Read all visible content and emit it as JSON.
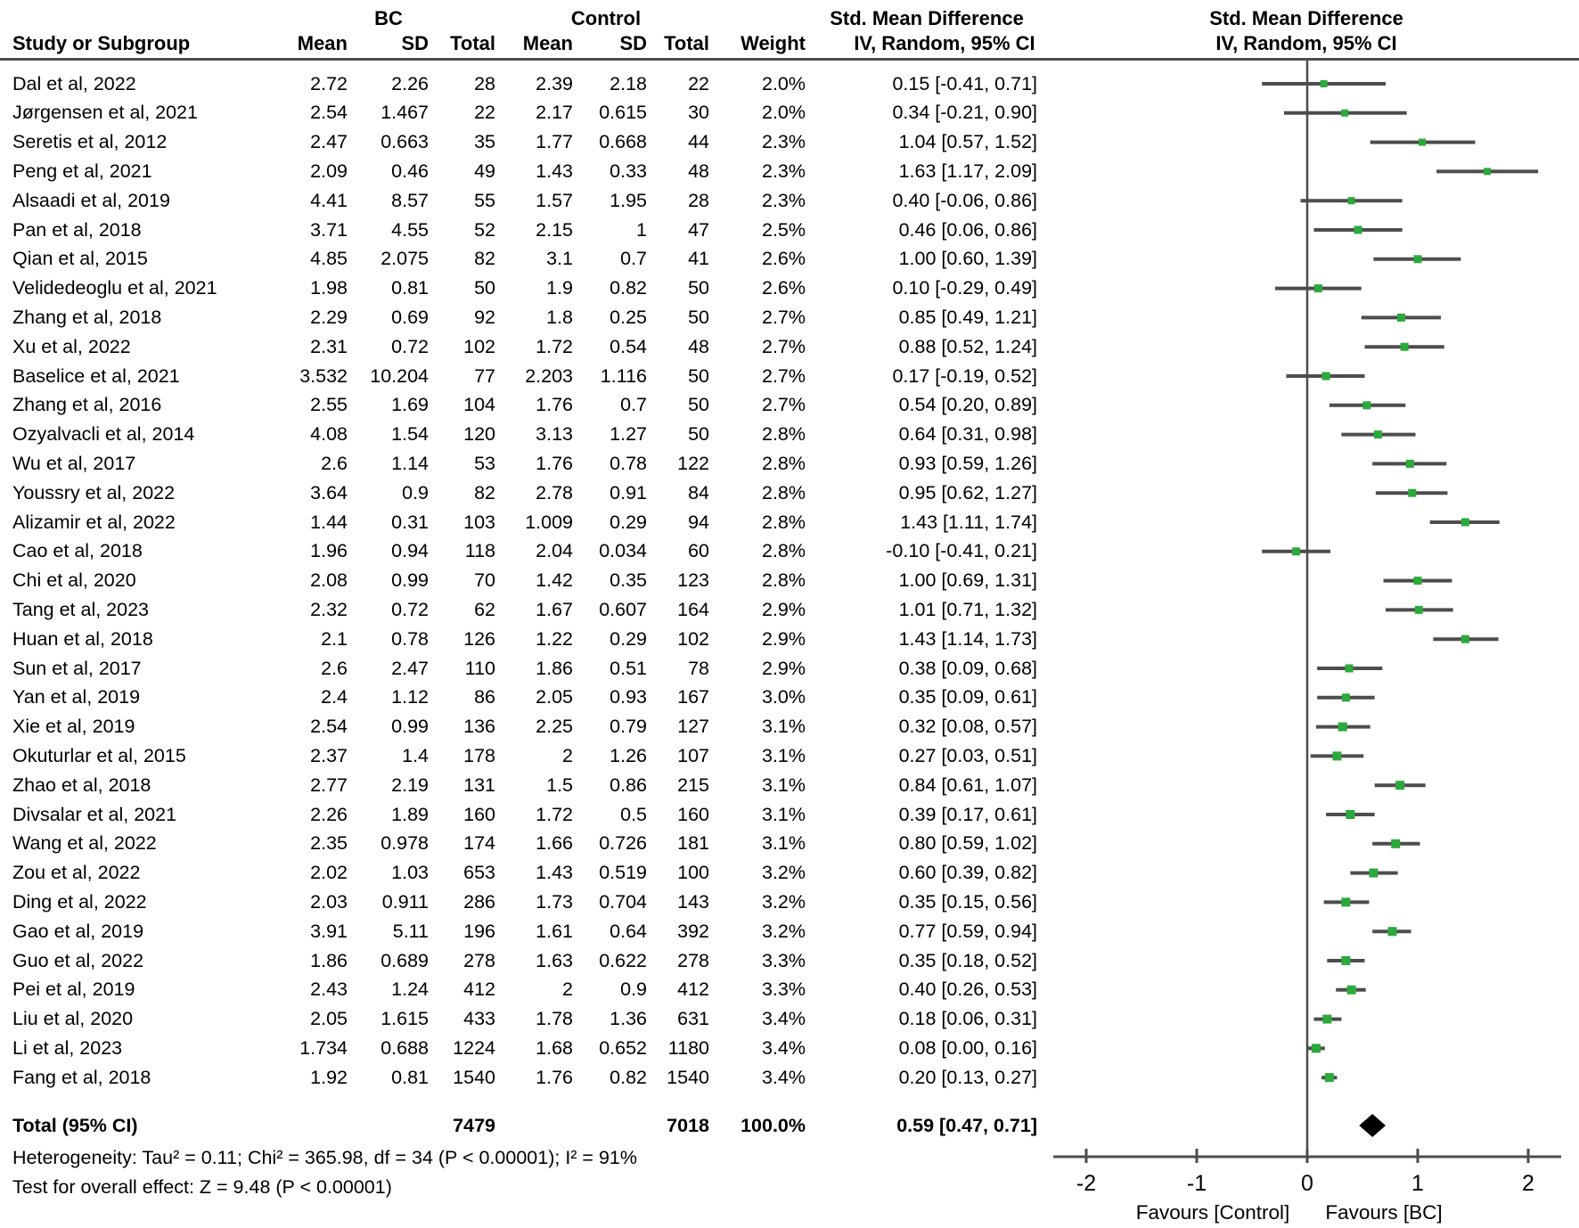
{
  "chart_data": {
    "type": "forest",
    "group_headers": {
      "bc": "BC",
      "control": "Control",
      "smd_left": "Std. Mean Difference",
      "smd_right": "Std. Mean Difference"
    },
    "column_headers": {
      "study": "Study or Subgroup",
      "bc_mean": "Mean",
      "bc_sd": "SD",
      "bc_total": "Total",
      "ctl_mean": "Mean",
      "ctl_sd": "SD",
      "ctl_total": "Total",
      "weight": "Weight",
      "ci_left": "IV, Random, 95% CI",
      "ci_right": "IV, Random, 95% CI"
    },
    "studies": [
      {
        "name": "Dal et al, 2022",
        "bc_mean": "2.72",
        "bc_sd": "2.26",
        "bc_total": "28",
        "ctl_mean": "2.39",
        "ctl_sd": "2.18",
        "ctl_total": "22",
        "weight": "2.0%",
        "ci_text": "0.15 [-0.41, 0.71]",
        "est": 0.15,
        "lo": -0.41,
        "hi": 0.71,
        "weight_pct": 2.0
      },
      {
        "name": "Jørgensen et al, 2021",
        "bc_mean": "2.54",
        "bc_sd": "1.467",
        "bc_total": "22",
        "ctl_mean": "2.17",
        "ctl_sd": "0.615",
        "ctl_total": "30",
        "weight": "2.0%",
        "ci_text": "0.34 [-0.21, 0.90]",
        "est": 0.34,
        "lo": -0.21,
        "hi": 0.9,
        "weight_pct": 2.0
      },
      {
        "name": "Seretis et al, 2012",
        "bc_mean": "2.47",
        "bc_sd": "0.663",
        "bc_total": "35",
        "ctl_mean": "1.77",
        "ctl_sd": "0.668",
        "ctl_total": "44",
        "weight": "2.3%",
        "ci_text": "1.04 [0.57, 1.52]",
        "est": 1.04,
        "lo": 0.57,
        "hi": 1.52,
        "weight_pct": 2.3
      },
      {
        "name": "Peng et al, 2021",
        "bc_mean": "2.09",
        "bc_sd": "0.46",
        "bc_total": "49",
        "ctl_mean": "1.43",
        "ctl_sd": "0.33",
        "ctl_total": "48",
        "weight": "2.3%",
        "ci_text": "1.63 [1.17, 2.09]",
        "est": 1.63,
        "lo": 1.17,
        "hi": 2.09,
        "weight_pct": 2.3
      },
      {
        "name": "Alsaadi et al, 2019",
        "bc_mean": "4.41",
        "bc_sd": "8.57",
        "bc_total": "55",
        "ctl_mean": "1.57",
        "ctl_sd": "1.95",
        "ctl_total": "28",
        "weight": "2.3%",
        "ci_text": "0.40 [-0.06, 0.86]",
        "est": 0.4,
        "lo": -0.06,
        "hi": 0.86,
        "weight_pct": 2.3
      },
      {
        "name": "Pan et al, 2018",
        "bc_mean": "3.71",
        "bc_sd": "4.55",
        "bc_total": "52",
        "ctl_mean": "2.15",
        "ctl_sd": "1",
        "ctl_total": "47",
        "weight": "2.5%",
        "ci_text": "0.46 [0.06, 0.86]",
        "est": 0.46,
        "lo": 0.06,
        "hi": 0.86,
        "weight_pct": 2.5
      },
      {
        "name": "Qian et al, 2015",
        "bc_mean": "4.85",
        "bc_sd": "2.075",
        "bc_total": "82",
        "ctl_mean": "3.1",
        "ctl_sd": "0.7",
        "ctl_total": "41",
        "weight": "2.6%",
        "ci_text": "1.00 [0.60, 1.39]",
        "est": 1.0,
        "lo": 0.6,
        "hi": 1.39,
        "weight_pct": 2.6
      },
      {
        "name": "Velidedeoglu et al, 2021",
        "bc_mean": "1.98",
        "bc_sd": "0.81",
        "bc_total": "50",
        "ctl_mean": "1.9",
        "ctl_sd": "0.82",
        "ctl_total": "50",
        "weight": "2.6%",
        "ci_text": "0.10 [-0.29, 0.49]",
        "est": 0.1,
        "lo": -0.29,
        "hi": 0.49,
        "weight_pct": 2.6
      },
      {
        "name": "Zhang et al, 2018",
        "bc_mean": "2.29",
        "bc_sd": "0.69",
        "bc_total": "92",
        "ctl_mean": "1.8",
        "ctl_sd": "0.25",
        "ctl_total": "50",
        "weight": "2.7%",
        "ci_text": "0.85 [0.49, 1.21]",
        "est": 0.85,
        "lo": 0.49,
        "hi": 1.21,
        "weight_pct": 2.7
      },
      {
        "name": "Xu et al, 2022",
        "bc_mean": "2.31",
        "bc_sd": "0.72",
        "bc_total": "102",
        "ctl_mean": "1.72",
        "ctl_sd": "0.54",
        "ctl_total": "48",
        "weight": "2.7%",
        "ci_text": "0.88 [0.52, 1.24]",
        "est": 0.88,
        "lo": 0.52,
        "hi": 1.24,
        "weight_pct": 2.7
      },
      {
        "name": "Baselice et al, 2021",
        "bc_mean": "3.532",
        "bc_sd": "10.204",
        "bc_total": "77",
        "ctl_mean": "2.203",
        "ctl_sd": "1.116",
        "ctl_total": "50",
        "weight": "2.7%",
        "ci_text": "0.17 [-0.19, 0.52]",
        "est": 0.17,
        "lo": -0.19,
        "hi": 0.52,
        "weight_pct": 2.7
      },
      {
        "name": "Zhang et al, 2016",
        "bc_mean": "2.55",
        "bc_sd": "1.69",
        "bc_total": "104",
        "ctl_mean": "1.76",
        "ctl_sd": "0.7",
        "ctl_total": "50",
        "weight": "2.7%",
        "ci_text": "0.54 [0.20, 0.89]",
        "est": 0.54,
        "lo": 0.2,
        "hi": 0.89,
        "weight_pct": 2.7
      },
      {
        "name": "Ozyalvacli et al, 2014",
        "bc_mean": "4.08",
        "bc_sd": "1.54",
        "bc_total": "120",
        "ctl_mean": "3.13",
        "ctl_sd": "1.27",
        "ctl_total": "50",
        "weight": "2.8%",
        "ci_text": "0.64 [0.31, 0.98]",
        "est": 0.64,
        "lo": 0.31,
        "hi": 0.98,
        "weight_pct": 2.8
      },
      {
        "name": "Wu et al, 2017",
        "bc_mean": "2.6",
        "bc_sd": "1.14",
        "bc_total": "53",
        "ctl_mean": "1.76",
        "ctl_sd": "0.78",
        "ctl_total": "122",
        "weight": "2.8%",
        "ci_text": "0.93 [0.59, 1.26]",
        "est": 0.93,
        "lo": 0.59,
        "hi": 1.26,
        "weight_pct": 2.8
      },
      {
        "name": "Youssry et al, 2022",
        "bc_mean": "3.64",
        "bc_sd": "0.9",
        "bc_total": "82",
        "ctl_mean": "2.78",
        "ctl_sd": "0.91",
        "ctl_total": "84",
        "weight": "2.8%",
        "ci_text": "0.95 [0.62, 1.27]",
        "est": 0.95,
        "lo": 0.62,
        "hi": 1.27,
        "weight_pct": 2.8
      },
      {
        "name": "Alizamir et al, 2022",
        "bc_mean": "1.44",
        "bc_sd": "0.31",
        "bc_total": "103",
        "ctl_mean": "1.009",
        "ctl_sd": "0.29",
        "ctl_total": "94",
        "weight": "2.8%",
        "ci_text": "1.43 [1.11, 1.74]",
        "est": 1.43,
        "lo": 1.11,
        "hi": 1.74,
        "weight_pct": 2.8
      },
      {
        "name": "Cao et al, 2018",
        "bc_mean": "1.96",
        "bc_sd": "0.94",
        "bc_total": "118",
        "ctl_mean": "2.04",
        "ctl_sd": "0.034",
        "ctl_total": "60",
        "weight": "2.8%",
        "ci_text": "-0.10 [-0.41, 0.21]",
        "est": -0.1,
        "lo": -0.41,
        "hi": 0.21,
        "weight_pct": 2.8
      },
      {
        "name": "Chi et al, 2020",
        "bc_mean": "2.08",
        "bc_sd": "0.99",
        "bc_total": "70",
        "ctl_mean": "1.42",
        "ctl_sd": "0.35",
        "ctl_total": "123",
        "weight": "2.8%",
        "ci_text": "1.00 [0.69, 1.31]",
        "est": 1.0,
        "lo": 0.69,
        "hi": 1.31,
        "weight_pct": 2.8
      },
      {
        "name": "Tang et al, 2023",
        "bc_mean": "2.32",
        "bc_sd": "0.72",
        "bc_total": "62",
        "ctl_mean": "1.67",
        "ctl_sd": "0.607",
        "ctl_total": "164",
        "weight": "2.9%",
        "ci_text": "1.01 [0.71, 1.32]",
        "est": 1.01,
        "lo": 0.71,
        "hi": 1.32,
        "weight_pct": 2.9
      },
      {
        "name": "Huan et al, 2018",
        "bc_mean": "2.1",
        "bc_sd": "0.78",
        "bc_total": "126",
        "ctl_mean": "1.22",
        "ctl_sd": "0.29",
        "ctl_total": "102",
        "weight": "2.9%",
        "ci_text": "1.43 [1.14, 1.73]",
        "est": 1.43,
        "lo": 1.14,
        "hi": 1.73,
        "weight_pct": 2.9
      },
      {
        "name": "Sun et al, 2017",
        "bc_mean": "2.6",
        "bc_sd": "2.47",
        "bc_total": "110",
        "ctl_mean": "1.86",
        "ctl_sd": "0.51",
        "ctl_total": "78",
        "weight": "2.9%",
        "ci_text": "0.38 [0.09, 0.68]",
        "est": 0.38,
        "lo": 0.09,
        "hi": 0.68,
        "weight_pct": 2.9
      },
      {
        "name": "Yan et al, 2019",
        "bc_mean": "2.4",
        "bc_sd": "1.12",
        "bc_total": "86",
        "ctl_mean": "2.05",
        "ctl_sd": "0.93",
        "ctl_total": "167",
        "weight": "3.0%",
        "ci_text": "0.35 [0.09, 0.61]",
        "est": 0.35,
        "lo": 0.09,
        "hi": 0.61,
        "weight_pct": 3.0
      },
      {
        "name": "Xie et al, 2019",
        "bc_mean": "2.54",
        "bc_sd": "0.99",
        "bc_total": "136",
        "ctl_mean": "2.25",
        "ctl_sd": "0.79",
        "ctl_total": "127",
        "weight": "3.1%",
        "ci_text": "0.32 [0.08, 0.57]",
        "est": 0.32,
        "lo": 0.08,
        "hi": 0.57,
        "weight_pct": 3.1
      },
      {
        "name": "Okuturlar et al, 2015",
        "bc_mean": "2.37",
        "bc_sd": "1.4",
        "bc_total": "178",
        "ctl_mean": "2",
        "ctl_sd": "1.26",
        "ctl_total": "107",
        "weight": "3.1%",
        "ci_text": "0.27 [0.03, 0.51]",
        "est": 0.27,
        "lo": 0.03,
        "hi": 0.51,
        "weight_pct": 3.1
      },
      {
        "name": "Zhao et al, 2018",
        "bc_mean": "2.77",
        "bc_sd": "2.19",
        "bc_total": "131",
        "ctl_mean": "1.5",
        "ctl_sd": "0.86",
        "ctl_total": "215",
        "weight": "3.1%",
        "ci_text": "0.84 [0.61, 1.07]",
        "est": 0.84,
        "lo": 0.61,
        "hi": 1.07,
        "weight_pct": 3.1
      },
      {
        "name": "Divsalar et al, 2021",
        "bc_mean": "2.26",
        "bc_sd": "1.89",
        "bc_total": "160",
        "ctl_mean": "1.72",
        "ctl_sd": "0.5",
        "ctl_total": "160",
        "weight": "3.1%",
        "ci_text": "0.39 [0.17, 0.61]",
        "est": 0.39,
        "lo": 0.17,
        "hi": 0.61,
        "weight_pct": 3.1
      },
      {
        "name": "Wang et al, 2022",
        "bc_mean": "2.35",
        "bc_sd": "0.978",
        "bc_total": "174",
        "ctl_mean": "1.66",
        "ctl_sd": "0.726",
        "ctl_total": "181",
        "weight": "3.1%",
        "ci_text": "0.80 [0.59, 1.02]",
        "est": 0.8,
        "lo": 0.59,
        "hi": 1.02,
        "weight_pct": 3.1
      },
      {
        "name": "Zou et al, 2022",
        "bc_mean": "2.02",
        "bc_sd": "1.03",
        "bc_total": "653",
        "ctl_mean": "1.43",
        "ctl_sd": "0.519",
        "ctl_total": "100",
        "weight": "3.2%",
        "ci_text": "0.60 [0.39, 0.82]",
        "est": 0.6,
        "lo": 0.39,
        "hi": 0.82,
        "weight_pct": 3.2
      },
      {
        "name": "Ding et al, 2022",
        "bc_mean": "2.03",
        "bc_sd": "0.911",
        "bc_total": "286",
        "ctl_mean": "1.73",
        "ctl_sd": "0.704",
        "ctl_total": "143",
        "weight": "3.2%",
        "ci_text": "0.35 [0.15, 0.56]",
        "est": 0.35,
        "lo": 0.15,
        "hi": 0.56,
        "weight_pct": 3.2
      },
      {
        "name": "Gao et al, 2019",
        "bc_mean": "3.91",
        "bc_sd": "5.11",
        "bc_total": "196",
        "ctl_mean": "1.61",
        "ctl_sd": "0.64",
        "ctl_total": "392",
        "weight": "3.2%",
        "ci_text": "0.77 [0.59, 0.94]",
        "est": 0.77,
        "lo": 0.59,
        "hi": 0.94,
        "weight_pct": 3.2
      },
      {
        "name": "Guo et al, 2022",
        "bc_mean": "1.86",
        "bc_sd": "0.689",
        "bc_total": "278",
        "ctl_mean": "1.63",
        "ctl_sd": "0.622",
        "ctl_total": "278",
        "weight": "3.3%",
        "ci_text": "0.35 [0.18, 0.52]",
        "est": 0.35,
        "lo": 0.18,
        "hi": 0.52,
        "weight_pct": 3.3
      },
      {
        "name": "Pei et al, 2019",
        "bc_mean": "2.43",
        "bc_sd": "1.24",
        "bc_total": "412",
        "ctl_mean": "2",
        "ctl_sd": "0.9",
        "ctl_total": "412",
        "weight": "3.3%",
        "ci_text": "0.40 [0.26, 0.53]",
        "est": 0.4,
        "lo": 0.26,
        "hi": 0.53,
        "weight_pct": 3.3
      },
      {
        "name": "Liu et al, 2020",
        "bc_mean": "2.05",
        "bc_sd": "1.615",
        "bc_total": "433",
        "ctl_mean": "1.78",
        "ctl_sd": "1.36",
        "ctl_total": "631",
        "weight": "3.4%",
        "ci_text": "0.18 [0.06, 0.31]",
        "est": 0.18,
        "lo": 0.06,
        "hi": 0.31,
        "weight_pct": 3.4
      },
      {
        "name": "Li et al, 2023",
        "bc_mean": "1.734",
        "bc_sd": "0.688",
        "bc_total": "1224",
        "ctl_mean": "1.68",
        "ctl_sd": "0.652",
        "ctl_total": "1180",
        "weight": "3.4%",
        "ci_text": "0.08 [0.00, 0.16]",
        "est": 0.08,
        "lo": 0.0,
        "hi": 0.16,
        "weight_pct": 3.4
      },
      {
        "name": "Fang et al, 2018",
        "bc_mean": "1.92",
        "bc_sd": "0.81",
        "bc_total": "1540",
        "ctl_mean": "1.76",
        "ctl_sd": "0.82",
        "ctl_total": "1540",
        "weight": "3.4%",
        "ci_text": "0.20 [0.13, 0.27]",
        "est": 0.2,
        "lo": 0.13,
        "hi": 0.27,
        "weight_pct": 3.4
      }
    ],
    "total": {
      "label": "Total (95% CI)",
      "bc_total": "7479",
      "ctl_total": "7018",
      "weight": "100.0%",
      "ci_text": "0.59 [0.47, 0.71]",
      "est": 0.59,
      "lo": 0.47,
      "hi": 0.71
    },
    "heterogeneity": "Heterogeneity: Tau² = 0.11; Chi² = 365.98, df = 34 (P < 0.00001); I² = 91%",
    "overall_effect": "Test for overall effect: Z = 9.48 (P < 0.00001)",
    "axis": {
      "ticks": [
        -2,
        -1,
        0,
        1,
        2
      ],
      "tick_labels": [
        "-2",
        "-1",
        "0",
        "1",
        "2"
      ],
      "xmin": -2.3,
      "xmax": 2.3,
      "favours_left": "Favours [Control]",
      "favours_right": "Favours [BC]"
    },
    "colors": {
      "marker_green": "#2ca93c",
      "ci_line": "#4d4d4d",
      "diamond": "#000000",
      "rule": "#4d4d4d"
    }
  }
}
